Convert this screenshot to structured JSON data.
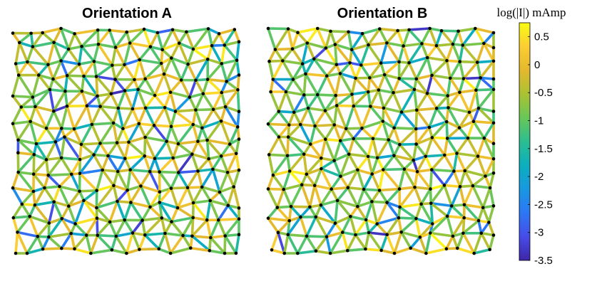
{
  "chart_data": {
    "type": "network",
    "panels": [
      {
        "title": "Orientation A",
        "seed": 7
      },
      {
        "title": "Orientation B",
        "seed": 19
      }
    ],
    "colorbar": {
      "title": "log(|I|) mAmp",
      "ticks": [
        0.5,
        0,
        -0.5,
        -1,
        -1.5,
        -2,
        -2.5,
        -3,
        -3.5
      ],
      "tick_labels": [
        "0.5",
        "0",
        "-0.5",
        "-1",
        "-1.5",
        "-2",
        "-2.5",
        "-3",
        "-3.5"
      ],
      "range": [
        -3.5,
        0.75
      ],
      "colormap": "parula"
    },
    "node_color": "#000000"
  }
}
